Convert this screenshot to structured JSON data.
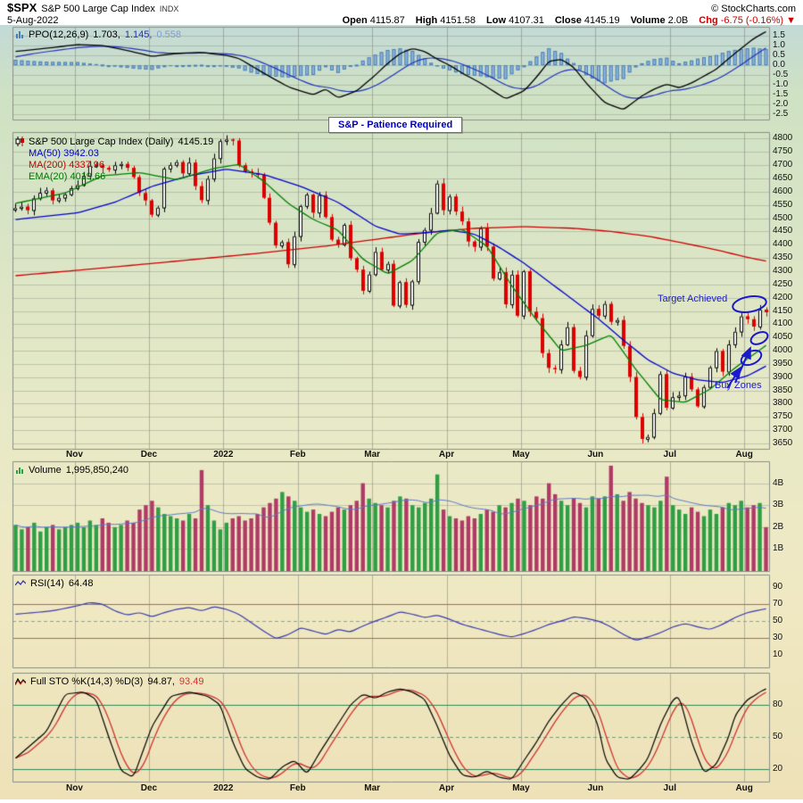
{
  "header": {
    "symbol": "$SPX",
    "name": "S&P 500 Large Cap Index",
    "exchange": "INDX",
    "date": "5-Aug-2022",
    "copyright": "© StockCharts.com",
    "quote": {
      "open_label": "Open",
      "open": "4115.87",
      "high_label": "High",
      "high": "4151.58",
      "low_label": "Low",
      "low": "4107.31",
      "close_label": "Close",
      "close": "4145.19",
      "volume_label": "Volume",
      "volume": "2.0B",
      "chg_label": "Chg",
      "chg": "-6.75 (-0.16%)",
      "chg_arrow": "▼"
    }
  },
  "annotations": {
    "note_box": "S&P - Patience Required",
    "target": "Target Achieved",
    "buy": "Buy Zones"
  },
  "legends": {
    "ppo": {
      "label": "PPO(12,26,9)",
      "v1": "1.703,",
      "v2": "1.145,",
      "v3": "0.558"
    },
    "price": {
      "title": "S&P 500 Large Cap Index (Daily)",
      "value": "4145.19",
      "ma50": "MA(50) 3942.03",
      "ma200": "MA(200) 4337.96",
      "ema20": "EMA(20) 4019.66"
    },
    "volume": {
      "label": "Volume",
      "value": "1,995,850,240"
    },
    "rsi": {
      "label": "RSI(14)",
      "value": "64.48"
    },
    "sto": {
      "label": "Full STO %K(14,3) %D(3)",
      "v1": "94.87,",
      "v2": "93.49"
    }
  },
  "axis": {
    "months": [
      {
        "label": "Nov",
        "i": 10
      },
      {
        "label": "Dec",
        "i": 22
      },
      {
        "label": "2022",
        "i": 34
      },
      {
        "label": "Feb",
        "i": 46
      },
      {
        "label": "Mar",
        "i": 58
      },
      {
        "label": "Apr",
        "i": 70
      },
      {
        "label": "May",
        "i": 82
      },
      {
        "label": "Jun",
        "i": 94
      },
      {
        "label": "Jul",
        "i": 106
      },
      {
        "label": "Aug",
        "i": 118
      }
    ],
    "price_ticks": [
      4800,
      4750,
      4700,
      4650,
      4600,
      4550,
      4500,
      4450,
      4400,
      4350,
      4300,
      4250,
      4200,
      4150,
      4100,
      4050,
      4000,
      3950,
      3900,
      3850,
      3800,
      3750,
      3700,
      3650
    ],
    "ppo_ticks": [
      {
        "v": 1.5,
        "t": "1.5"
      },
      {
        "v": 1.0,
        "t": "1.0"
      },
      {
        "v": 0.5,
        "t": "0.5"
      },
      {
        "v": 0.0,
        "t": "0.0"
      },
      {
        "v": -0.5,
        "t": "-0.5"
      },
      {
        "v": -1.0,
        "t": "-1.0"
      },
      {
        "v": -1.5,
        "t": "-1.5"
      },
      {
        "v": -2.0,
        "t": "-2.0"
      },
      {
        "v": -2.5,
        "t": "-2.5"
      }
    ],
    "volume_ticks": [
      {
        "v": 4,
        "t": "4B"
      },
      {
        "v": 3,
        "t": "3B"
      },
      {
        "v": 2,
        "t": "2B"
      },
      {
        "v": 1,
        "t": "1B"
      }
    ],
    "rsi_ticks": [
      90,
      70,
      50,
      30,
      10
    ],
    "sto_ticks": [
      80,
      50,
      20
    ]
  },
  "chart_data": {
    "type": "candlestick",
    "title": "S&P 500 Large Cap Index (Daily)",
    "date_range": "Nov 2021 - 5 Aug 2022",
    "last_close": 4145.19,
    "price_axis_range": [
      3650,
      4800
    ],
    "close": [
      4538,
      4544,
      4530,
      4575,
      4596,
      4605,
      4567,
      4577,
      4590,
      4613,
      4625,
      4660,
      4698,
      4701,
      4690,
      4683,
      4700,
      4705,
      4690,
      4655,
      4595,
      4567,
      4513,
      4540,
      4687,
      4701,
      4712,
      4669,
      4710,
      4621,
      4568,
      4649,
      4726,
      4791,
      4797,
      4793,
      4700,
      4677,
      4670,
      4663,
      4577,
      4483,
      4397,
      4410,
      4326,
      4432,
      4546,
      4589,
      4521,
      4587,
      4504,
      4419,
      4401,
      4475,
      4349,
      4306,
      4226,
      4288,
      4373,
      4306,
      4328,
      4170,
      4259,
      4173,
      4262,
      4411,
      4456,
      4520,
      4631,
      4530,
      4582,
      4525,
      4488,
      4412,
      4392,
      4462,
      4393,
      4272,
      4296,
      4175,
      4287,
      4132,
      4300,
      4147,
      4123,
      3991,
      3935,
      3930,
      4024,
      4089,
      3924,
      3901,
      4058,
      4158,
      4132,
      4177,
      4109,
      4116,
      4018,
      3901,
      3750,
      3667,
      3675,
      3765,
      3912,
      3785,
      3825,
      3831,
      3902,
      3854,
      3790,
      3863,
      3937,
      3999,
      3921,
      4024,
      4072,
      4130,
      4119,
      4091,
      4155,
      4145
    ],
    "volume_b": [
      2.1,
      1.9,
      2.0,
      2.2,
      1.8,
      2.0,
      2.1,
      1.9,
      2.0,
      2.1,
      2.2,
      2.0,
      2.3,
      2.1,
      2.4,
      2.2,
      2.0,
      2.1,
      2.3,
      2.2,
      2.8,
      3.0,
      3.2,
      2.9,
      2.6,
      2.5,
      2.4,
      2.3,
      2.6,
      2.4,
      4.6,
      3.0,
      2.3,
      1.9,
      2.2,
      2.4,
      2.5,
      2.3,
      2.4,
      2.6,
      2.9,
      3.1,
      3.3,
      3.6,
      3.4,
      3.2,
      2.9,
      2.7,
      2.8,
      2.6,
      2.5,
      2.7,
      2.9,
      2.8,
      3.0,
      3.2,
      4.0,
      3.3,
      3.1,
      3.0,
      2.9,
      3.2,
      3.4,
      3.3,
      3.0,
      2.9,
      3.1,
      3.3,
      4.4,
      2.8,
      2.5,
      2.4,
      2.3,
      2.5,
      2.4,
      2.6,
      2.8,
      2.7,
      3.0,
      2.9,
      3.1,
      3.3,
      3.2,
      3.0,
      3.4,
      3.3,
      4.0,
      3.5,
      3.2,
      3.0,
      3.3,
      3.1,
      2.9,
      3.4,
      3.3,
      3.4,
      4.8,
      3.5,
      3.2,
      3.6,
      3.3,
      3.1,
      3.0,
      2.9,
      3.2,
      4.3,
      3.0,
      2.8,
      2.6,
      2.9,
      2.7,
      2.5,
      2.8,
      2.6,
      2.9,
      3.1,
      3.0,
      3.2,
      2.9,
      3.0,
      3.1,
      2.0
    ],
    "overlays": {
      "ma50_anchors": [
        [
          0,
          4495
        ],
        [
          10,
          4520
        ],
        [
          16,
          4560
        ],
        [
          22,
          4620
        ],
        [
          28,
          4660
        ],
        [
          34,
          4685
        ],
        [
          40,
          4665
        ],
        [
          46,
          4620
        ],
        [
          52,
          4560
        ],
        [
          58,
          4470
        ],
        [
          62,
          4440
        ],
        [
          66,
          4445
        ],
        [
          70,
          4455
        ],
        [
          74,
          4440
        ],
        [
          78,
          4390
        ],
        [
          82,
          4330
        ],
        [
          86,
          4260
        ],
        [
          90,
          4190
        ],
        [
          94,
          4120
        ],
        [
          98,
          4040
        ],
        [
          102,
          3965
        ],
        [
          106,
          3915
        ],
        [
          110,
          3890
        ],
        [
          114,
          3880
        ],
        [
          118,
          3905
        ],
        [
          121,
          3942
        ]
      ],
      "ma200_anchors": [
        [
          0,
          4283
        ],
        [
          14,
          4312
        ],
        [
          26,
          4338
        ],
        [
          38,
          4365
        ],
        [
          50,
          4395
        ],
        [
          58,
          4420
        ],
        [
          66,
          4445
        ],
        [
          74,
          4462
        ],
        [
          82,
          4468
        ],
        [
          90,
          4462
        ],
        [
          96,
          4450
        ],
        [
          102,
          4432
        ],
        [
          108,
          4405
        ],
        [
          114,
          4375
        ],
        [
          118,
          4352
        ],
        [
          121,
          4338
        ]
      ],
      "ema20_anchors": [
        [
          0,
          4556
        ],
        [
          8,
          4595
        ],
        [
          14,
          4660
        ],
        [
          20,
          4672
        ],
        [
          26,
          4645
        ],
        [
          32,
          4688
        ],
        [
          36,
          4703
        ],
        [
          40,
          4640
        ],
        [
          44,
          4555
        ],
        [
          48,
          4495
        ],
        [
          52,
          4455
        ],
        [
          56,
          4345
        ],
        [
          60,
          4290
        ],
        [
          64,
          4340
        ],
        [
          68,
          4445
        ],
        [
          72,
          4458
        ],
        [
          76,
          4395
        ],
        [
          80,
          4245
        ],
        [
          84,
          4115
        ],
        [
          88,
          4000
        ],
        [
          92,
          4020
        ],
        [
          96,
          4060
        ],
        [
          100,
          3930
        ],
        [
          104,
          3815
        ],
        [
          108,
          3805
        ],
        [
          112,
          3855
        ],
        [
          116,
          3935
        ],
        [
          121,
          4020
        ]
      ]
    },
    "indicators": {
      "ppo_last": [
        1.703,
        1.145,
        0.558
      ],
      "rsi_last": 64.48,
      "sto_last": [
        94.87,
        93.49
      ],
      "ppo_anchors": [
        [
          0,
          0.7
        ],
        [
          6,
          0.9
        ],
        [
          10,
          1.05
        ],
        [
          14,
          1.0
        ],
        [
          18,
          0.75
        ],
        [
          22,
          0.45
        ],
        [
          26,
          0.6
        ],
        [
          30,
          0.65
        ],
        [
          34,
          0.5
        ],
        [
          36,
          0.35
        ],
        [
          40,
          -0.4
        ],
        [
          44,
          -1.1
        ],
        [
          48,
          -1.5
        ],
        [
          50,
          -1.2
        ],
        [
          52,
          -1.65
        ],
        [
          55,
          -1.3
        ],
        [
          58,
          -0.5
        ],
        [
          60,
          0.1
        ],
        [
          62,
          0.6
        ],
        [
          64,
          0.85
        ],
        [
          66,
          0.7
        ],
        [
          68,
          0.3
        ],
        [
          70,
          0.0
        ],
        [
          72,
          -0.4
        ],
        [
          75,
          -0.9
        ],
        [
          79,
          -1.7
        ],
        [
          82,
          -1.3
        ],
        [
          84,
          -0.6
        ],
        [
          86,
          0.2
        ],
        [
          88,
          0.3
        ],
        [
          90,
          -0.1
        ],
        [
          92,
          -0.9
        ],
        [
          95,
          -1.9
        ],
        [
          98,
          -2.25
        ],
        [
          101,
          -1.55
        ],
        [
          103,
          -1.2
        ],
        [
          105,
          -0.95
        ],
        [
          107,
          -1.15
        ],
        [
          109,
          -0.9
        ],
        [
          111,
          -0.55
        ],
        [
          113,
          -0.2
        ],
        [
          115,
          0.35
        ],
        [
          117,
          0.85
        ],
        [
          119,
          1.35
        ],
        [
          121,
          1.703
        ]
      ],
      "rsi_anchors": [
        [
          0,
          58
        ],
        [
          6,
          62
        ],
        [
          10,
          68
        ],
        [
          12,
          72
        ],
        [
          14,
          70
        ],
        [
          16,
          62
        ],
        [
          18,
          57
        ],
        [
          20,
          60
        ],
        [
          22,
          55
        ],
        [
          24,
          60
        ],
        [
          26,
          64
        ],
        [
          28,
          66
        ],
        [
          30,
          62
        ],
        [
          32,
          67
        ],
        [
          34,
          64
        ],
        [
          36,
          58
        ],
        [
          38,
          48
        ],
        [
          40,
          38
        ],
        [
          42,
          29
        ],
        [
          44,
          34
        ],
        [
          46,
          42
        ],
        [
          48,
          38
        ],
        [
          50,
          34
        ],
        [
          52,
          40
        ],
        [
          54,
          37
        ],
        [
          56,
          44
        ],
        [
          58,
          50
        ],
        [
          60,
          55
        ],
        [
          62,
          61
        ],
        [
          64,
          58
        ],
        [
          66,
          54
        ],
        [
          68,
          57
        ],
        [
          70,
          52
        ],
        [
          72,
          46
        ],
        [
          74,
          42
        ],
        [
          76,
          38
        ],
        [
          78,
          34
        ],
        [
          80,
          31
        ],
        [
          82,
          35
        ],
        [
          84,
          40
        ],
        [
          86,
          46
        ],
        [
          88,
          50
        ],
        [
          90,
          55
        ],
        [
          92,
          53
        ],
        [
          94,
          50
        ],
        [
          96,
          43
        ],
        [
          98,
          34
        ],
        [
          100,
          27
        ],
        [
          102,
          31
        ],
        [
          104,
          36
        ],
        [
          106,
          43
        ],
        [
          108,
          47
        ],
        [
          110,
          43
        ],
        [
          112,
          40
        ],
        [
          114,
          46
        ],
        [
          116,
          54
        ],
        [
          118,
          60
        ],
        [
          120,
          63
        ],
        [
          121,
          64.48
        ]
      ],
      "stok_anchors": [
        [
          0,
          30
        ],
        [
          5,
          55
        ],
        [
          8,
          90
        ],
        [
          11,
          92
        ],
        [
          13,
          85
        ],
        [
          15,
          50
        ],
        [
          17,
          18
        ],
        [
          19,
          12
        ],
        [
          22,
          60
        ],
        [
          25,
          88
        ],
        [
          28,
          92
        ],
        [
          31,
          88
        ],
        [
          33,
          80
        ],
        [
          35,
          45
        ],
        [
          37,
          20
        ],
        [
          39,
          12
        ],
        [
          41,
          10
        ],
        [
          43,
          22
        ],
        [
          45,
          28
        ],
        [
          47,
          15
        ],
        [
          49,
          35
        ],
        [
          52,
          62
        ],
        [
          54,
          80
        ],
        [
          56,
          90
        ],
        [
          58,
          86
        ],
        [
          60,
          92
        ],
        [
          62,
          95
        ],
        [
          64,
          92
        ],
        [
          66,
          85
        ],
        [
          68,
          60
        ],
        [
          70,
          32
        ],
        [
          72,
          14
        ],
        [
          74,
          12
        ],
        [
          76,
          18
        ],
        [
          78,
          12
        ],
        [
          80,
          10
        ],
        [
          82,
          28
        ],
        [
          84,
          45
        ],
        [
          86,
          65
        ],
        [
          88,
          80
        ],
        [
          90,
          92
        ],
        [
          92,
          86
        ],
        [
          94,
          60
        ],
        [
          95,
          30
        ],
        [
          97,
          12
        ],
        [
          99,
          10
        ],
        [
          101,
          22
        ],
        [
          102,
          30
        ],
        [
          104,
          62
        ],
        [
          106,
          85
        ],
        [
          107,
          88
        ],
        [
          109,
          45
        ],
        [
          111,
          16
        ],
        [
          113,
          24
        ],
        [
          115,
          50
        ],
        [
          116,
          70
        ],
        [
          118,
          85
        ],
        [
          119,
          88
        ],
        [
          120,
          92
        ],
        [
          121,
          94.87
        ]
      ]
    },
    "colors": {
      "down": "#dd0000",
      "up_fill": "#ffffff",
      "up_stroke": "#000000",
      "ma50": "#0000cc",
      "ma200": "#cc0000",
      "ema20": "#008000",
      "ppo_line": "#000000",
      "ppo_signal": "#2233bb",
      "ppo_hist_fill": "#8fb4d9",
      "ppo_hist_stroke": "#4a7fb5",
      "vol_up": "#2f9e44",
      "vol_down": "#b03a66",
      "vol_ma": "#5b79c9",
      "rsi_line": "#3a3aad",
      "rsi_band": "#a06a6a",
      "rsi_fill": "rgba(110,150,200,0.55)",
      "sto_band": "#2e8b57",
      "sto_k": "#000000",
      "sto_d": "#cc3333",
      "annotation": "#1a1acc",
      "grid": "rgba(120,125,115,0.35)",
      "vgrid": "rgba(120,125,115,0.5)",
      "frame": "#8a8f84"
    }
  }
}
